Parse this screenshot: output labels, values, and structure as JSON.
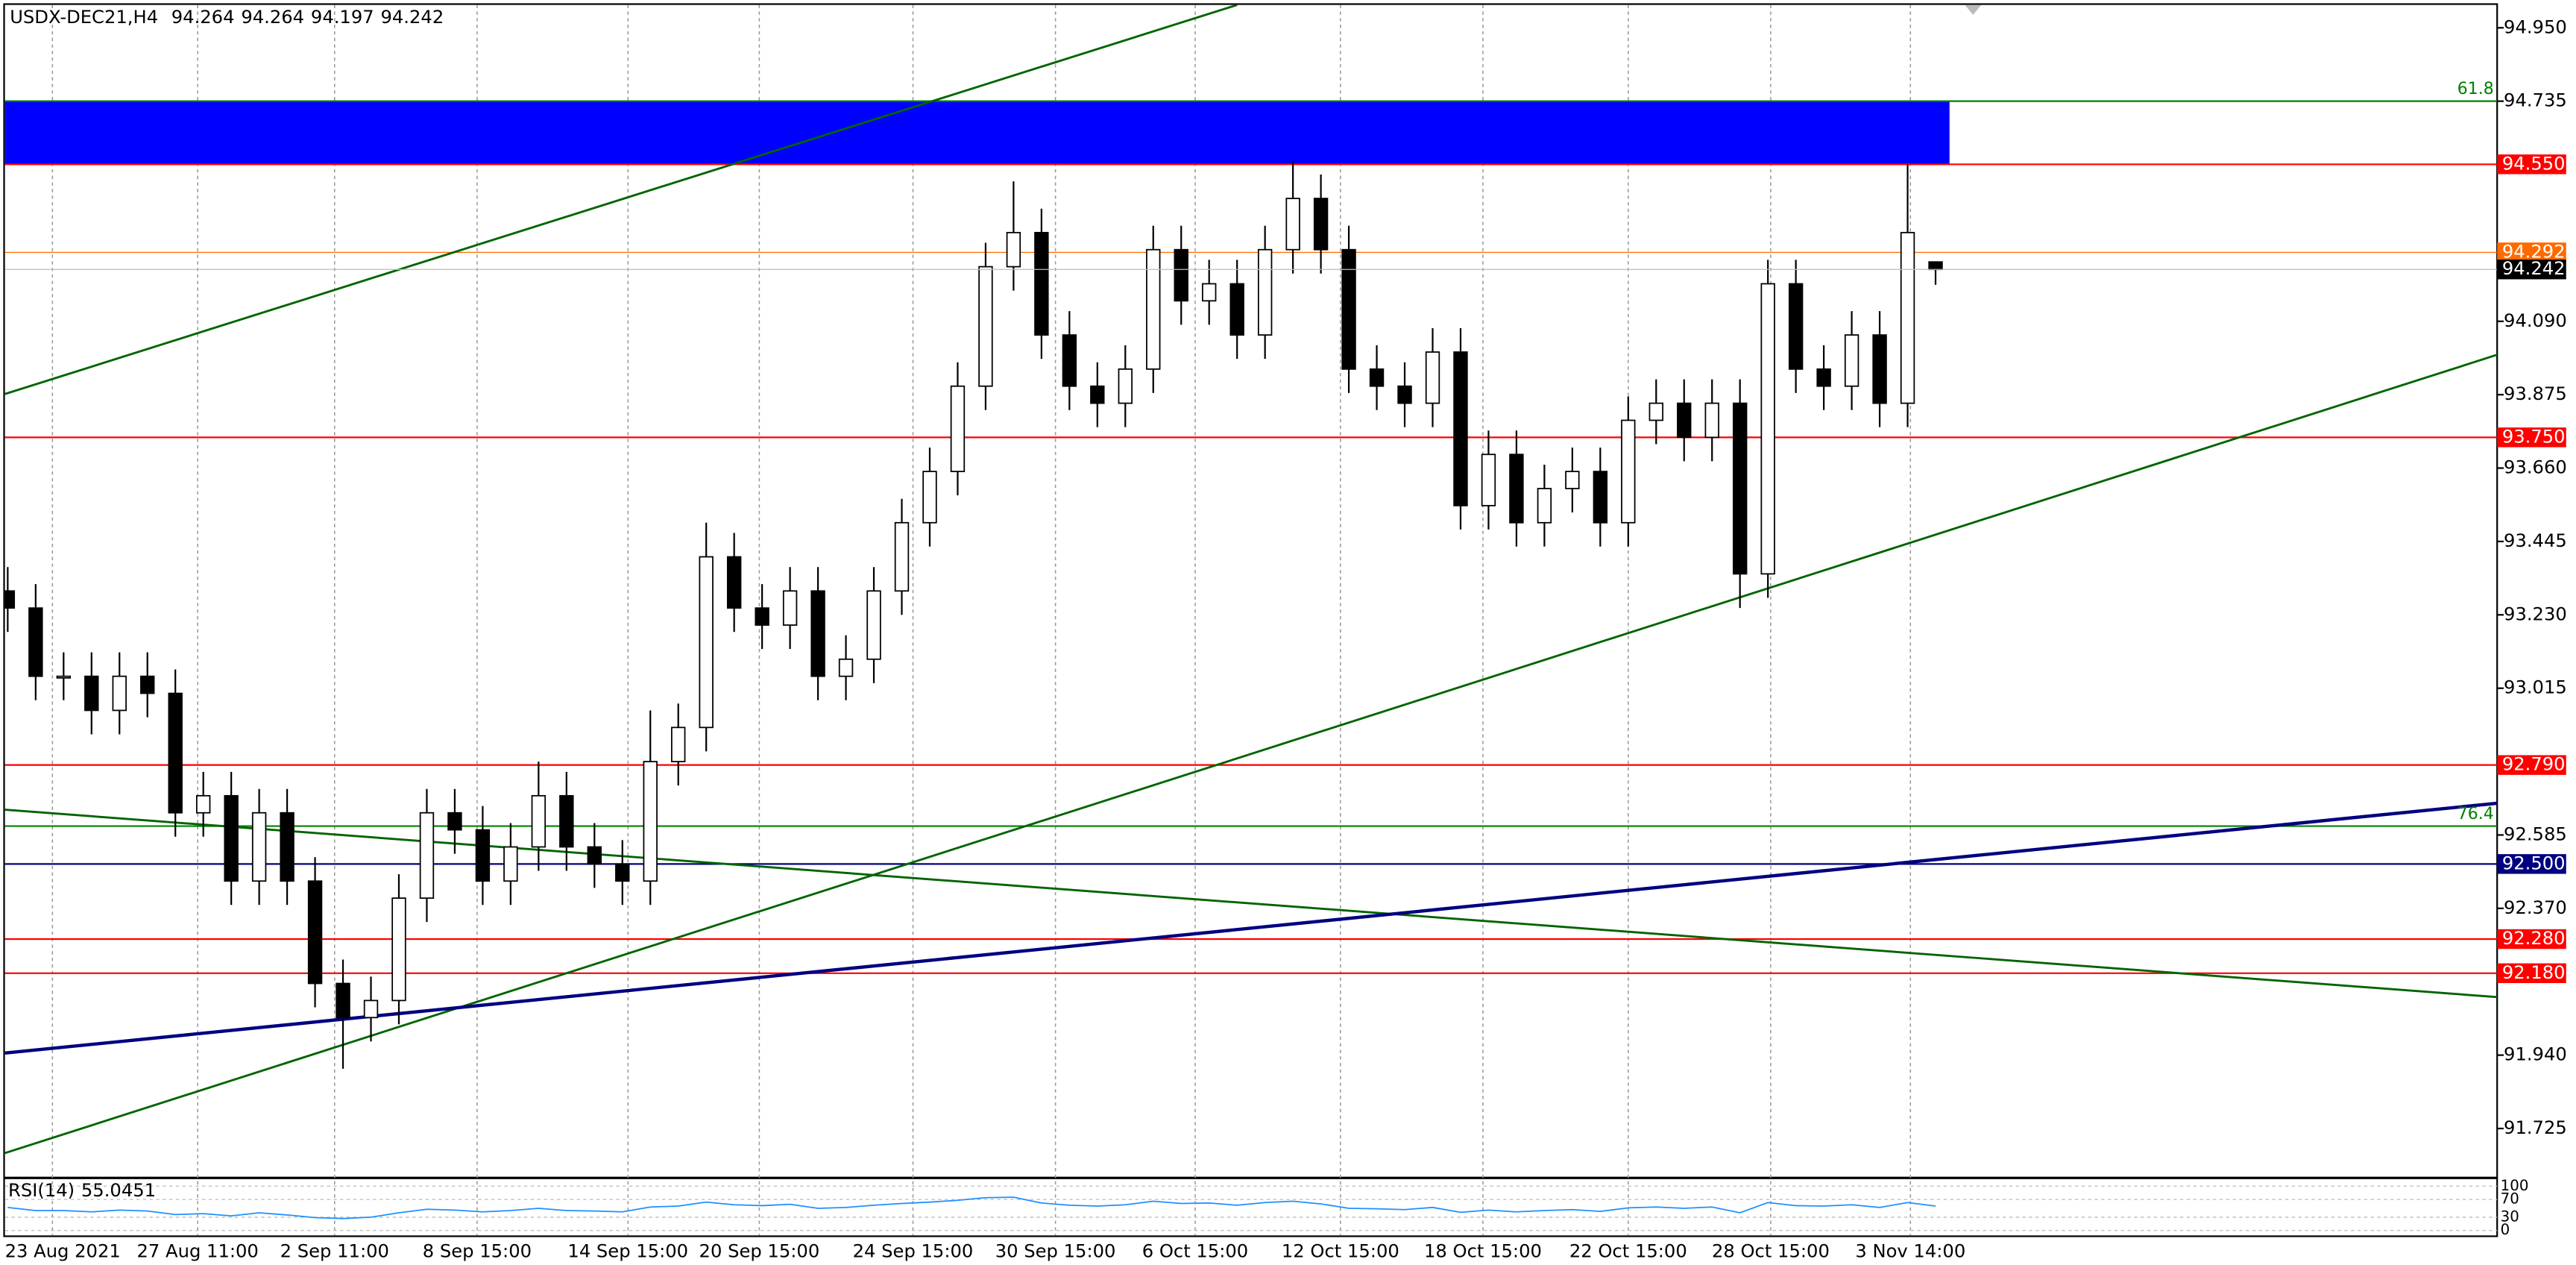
{
  "chart_data": {
    "type": "candlestick",
    "title": "USDX-DEC21,H4",
    "open": [
      93.3,
      93.25,
      93.05,
      93.05,
      92.95,
      93.05,
      93.0,
      92.65,
      92.7,
      92.45,
      92.65,
      92.45,
      92.15,
      92.05,
      92.1,
      92.4,
      92.65,
      92.6,
      92.45,
      92.55,
      92.7,
      92.55,
      92.5,
      92.45,
      92.8,
      92.9,
      93.4,
      93.25,
      93.2,
      93.3,
      93.05,
      93.1,
      93.3,
      93.5,
      93.65,
      93.9,
      94.25,
      94.35,
      94.05,
      93.9,
      93.85,
      93.95,
      94.3,
      94.15,
      94.2,
      94.05,
      94.3,
      94.45,
      94.3,
      93.95,
      93.9,
      93.85,
      94.0,
      93.55,
      93.7,
      93.5,
      93.6,
      93.65,
      93.5,
      93.8,
      93.85,
      93.75,
      93.85,
      93.35,
      94.2,
      93.95,
      93.9,
      94.05,
      93.85,
      94.264
    ],
    "high": [
      93.37,
      93.32,
      93.12,
      93.12,
      93.12,
      93.12,
      93.07,
      92.77,
      92.77,
      92.72,
      92.72,
      92.52,
      92.22,
      92.17,
      92.47,
      92.72,
      92.72,
      92.67,
      92.62,
      92.8,
      92.77,
      92.62,
      92.57,
      92.95,
      92.97,
      93.5,
      93.47,
      93.32,
      93.37,
      93.37,
      93.17,
      93.37,
      93.57,
      93.72,
      93.97,
      94.32,
      94.5,
      94.42,
      94.12,
      93.97,
      94.02,
      94.37,
      94.37,
      94.27,
      94.27,
      94.37,
      94.56,
      94.52,
      94.37,
      94.02,
      93.97,
      94.07,
      94.07,
      93.77,
      93.77,
      93.67,
      93.72,
      93.72,
      93.87,
      93.92,
      93.92,
      93.92,
      93.92,
      94.27,
      94.27,
      94.02,
      94.12,
      94.12,
      94.55,
      94.264
    ],
    "low": [
      93.18,
      92.98,
      92.98,
      92.88,
      92.88,
      92.93,
      92.58,
      92.58,
      92.38,
      92.38,
      92.38,
      92.08,
      91.9,
      91.98,
      92.03,
      92.33,
      92.53,
      92.38,
      92.38,
      92.48,
      92.48,
      92.43,
      92.38,
      92.38,
      92.73,
      92.83,
      93.18,
      93.13,
      93.13,
      92.98,
      92.98,
      93.03,
      93.23,
      93.43,
      93.58,
      93.83,
      94.18,
      93.98,
      93.83,
      93.78,
      93.78,
      93.88,
      94.08,
      94.08,
      93.98,
      93.98,
      94.23,
      94.23,
      93.88,
      93.83,
      93.78,
      93.78,
      93.48,
      93.48,
      93.43,
      93.43,
      93.53,
      93.43,
      93.43,
      93.73,
      93.68,
      93.68,
      93.25,
      93.28,
      93.88,
      93.83,
      93.83,
      93.78,
      93.78,
      94.197
    ],
    "close": [
      93.25,
      93.05,
      93.05,
      92.95,
      93.05,
      93.0,
      92.65,
      92.7,
      92.45,
      92.65,
      92.45,
      92.15,
      92.05,
      92.1,
      92.4,
      92.65,
      92.6,
      92.45,
      92.55,
      92.7,
      92.55,
      92.5,
      92.45,
      92.8,
      92.9,
      93.4,
      93.25,
      93.2,
      93.3,
      93.05,
      93.1,
      93.3,
      93.5,
      93.65,
      93.9,
      94.25,
      94.35,
      94.05,
      93.9,
      93.85,
      93.95,
      94.3,
      94.15,
      94.2,
      94.05,
      94.3,
      94.45,
      94.3,
      93.95,
      93.9,
      93.85,
      94.0,
      93.55,
      93.7,
      93.5,
      93.6,
      93.65,
      93.5,
      93.8,
      93.85,
      93.75,
      93.85,
      93.35,
      94.2,
      93.95,
      93.9,
      94.05,
      93.85,
      94.35,
      94.242
    ],
    "xlim": [
      -0.1,
      89.1
    ],
    "ylim": [
      91.585,
      95.017
    ],
    "xticks": [
      {
        "value": 1.6,
        "label": "23 Aug 2021"
      },
      {
        "value": 6.8,
        "label": "27 Aug 11:00"
      },
      {
        "value": 11.7,
        "label": "2 Sep 11:00"
      },
      {
        "value": 16.8,
        "label": "8 Sep 15:00"
      },
      {
        "value": 22.2,
        "label": "14 Sep 15:00"
      },
      {
        "value": 26.9,
        "label": "20 Sep 15:00"
      },
      {
        "value": 32.4,
        "label": "24 Sep 15:00"
      },
      {
        "value": 37.5,
        "label": "30 Sep 15:00"
      },
      {
        "value": 42.5,
        "label": "6 Oct 15:00"
      },
      {
        "value": 47.7,
        "label": "12 Oct 15:00"
      },
      {
        "value": 52.8,
        "label": "18 Oct 15:00"
      },
      {
        "value": 58,
        "label": "22 Oct 15:00"
      },
      {
        "value": 63.1,
        "label": "28 Oct 15:00"
      },
      {
        "value": 68.1,
        "label": "3 Nov 14:00"
      }
    ],
    "yticks": [
      {
        "value": 94.95,
        "label": "94.950"
      },
      {
        "value": 94.735,
        "label": "94.735"
      },
      {
        "value": 94.09,
        "label": "94.090"
      },
      {
        "value": 93.875,
        "label": "93.875"
      },
      {
        "value": 93.66,
        "label": "93.660"
      },
      {
        "value": 93.445,
        "label": "93.445"
      },
      {
        "value": 93.23,
        "label": "93.230"
      },
      {
        "value": 93.015,
        "label": "93.015"
      },
      {
        "value": 92.585,
        "label": "92.585"
      },
      {
        "value": 92.37,
        "label": "92.370"
      },
      {
        "value": 91.94,
        "label": "91.940"
      },
      {
        "value": 91.725,
        "label": "91.725"
      }
    ],
    "grid": true,
    "bull_color": "#ffffff",
    "bear_color": "#000000",
    "zone": {
      "from": 94.55,
      "to": 94.735,
      "x": [
        -0.1,
        69.5
      ],
      "color": "#0000ff"
    },
    "levels": [
      {
        "value": 94.55,
        "label": "94.550",
        "color": "#ff0000"
      },
      {
        "value": 94.292,
        "label": "94.292",
        "color": "#ff6a00"
      },
      {
        "value": 93.75,
        "label": "93.750",
        "color": "#ff0000"
      },
      {
        "value": 92.79,
        "label": "92.790",
        "color": "#ff0000"
      },
      {
        "value": 92.5,
        "label": "92.500",
        "color": "#000080"
      },
      {
        "value": 92.28,
        "label": "92.280",
        "color": "#ff0000"
      },
      {
        "value": 92.18,
        "label": "92.180",
        "color": "#ff0000"
      }
    ],
    "fibo": [
      {
        "value": 94.735,
        "label": "61.8"
      },
      {
        "value": 92.611,
        "label": "76.4"
      }
    ],
    "fibo_color": "#008000",
    "trendlines": [
      {
        "x": [
          -0.1,
          44
        ],
        "y": [
          93.877,
          95.017
        ],
        "color": "#006400"
      },
      {
        "x": [
          -0.1,
          89.1
        ],
        "y": [
          91.653,
          93.992
        ],
        "color": "#006400"
      },
      {
        "x": [
          -0.1,
          89.1
        ],
        "y": [
          92.659,
          92.11
        ],
        "color": "#006400"
      },
      {
        "x": [
          -0.1,
          89.1
        ],
        "y": [
          91.946,
          92.678
        ],
        "color": "#000080"
      }
    ],
    "rsi": {
      "name": "RSI(14)",
      "color": "#1e90ff",
      "values": [
        52,
        45,
        45,
        42,
        46,
        44,
        36,
        38,
        33,
        40,
        35,
        29,
        27,
        30,
        40,
        48,
        46,
        42,
        45,
        50,
        45,
        44,
        42,
        53,
        55,
        64,
        58,
        56,
        59,
        50,
        52,
        57,
        61,
        64,
        68,
        74,
        75,
        62,
        57,
        55,
        58,
        66,
        61,
        62,
        57,
        63,
        66,
        60,
        50,
        49,
        47,
        52,
        41,
        46,
        42,
        45,
        47,
        43,
        51,
        53,
        50,
        53,
        40,
        63,
        56,
        55,
        58,
        52,
        63,
        55.0451
      ],
      "ylim": [
        0,
        100
      ],
      "yticks": [
        100,
        70,
        30,
        0
      ]
    }
  }
}
